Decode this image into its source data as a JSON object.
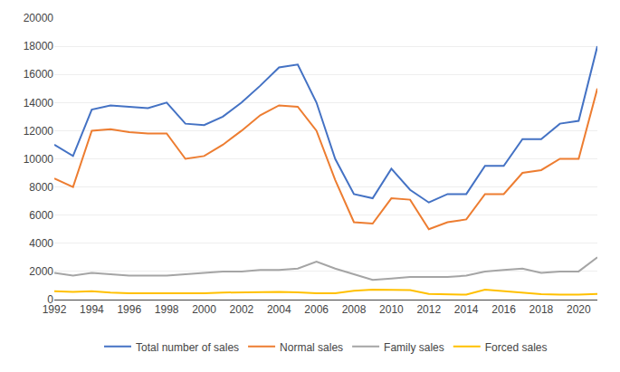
{
  "chart_data": {
    "type": "line",
    "x": [
      1992,
      1993,
      1994,
      1995,
      1996,
      1997,
      1998,
      1999,
      2000,
      2001,
      2002,
      2003,
      2004,
      2005,
      2006,
      2007,
      2008,
      2009,
      2010,
      2011,
      2012,
      2013,
      2014,
      2015,
      2016,
      2017,
      2018,
      2019,
      2020,
      2021
    ],
    "series": [
      {
        "name": "Total number of sales",
        "color": "#4472C4",
        "values": [
          11000,
          10200,
          13500,
          13800,
          13700,
          13600,
          14000,
          12500,
          12400,
          13000,
          14000,
          15200,
          16500,
          16700,
          14000,
          10000,
          7500,
          7200,
          9300,
          7800,
          6900,
          7500,
          7500,
          9500,
          9500,
          11400,
          11400,
          12500,
          12700,
          18000
        ]
      },
      {
        "name": "Normal sales",
        "color": "#ED7D31",
        "values": [
          8600,
          8000,
          12000,
          12100,
          11900,
          11800,
          11800,
          10000,
          10200,
          11000,
          12000,
          13100,
          13800,
          13700,
          12000,
          8500,
          5500,
          5400,
          7200,
          7100,
          5000,
          5500,
          5700,
          7500,
          7500,
          9000,
          9200,
          10000,
          10000,
          15000
        ]
      },
      {
        "name": "Family sales",
        "color": "#A5A5A5",
        "values": [
          1900,
          1700,
          1900,
          1800,
          1700,
          1700,
          1700,
          1800,
          1900,
          2000,
          2000,
          2100,
          2100,
          2200,
          2700,
          2200,
          1800,
          1400,
          1500,
          1600,
          1600,
          1600,
          1700,
          2000,
          2100,
          2200,
          1900,
          2000,
          2000,
          3000
        ]
      },
      {
        "name": "Forced sales",
        "color": "#FFC000",
        "values": [
          600,
          550,
          600,
          500,
          450,
          450,
          430,
          450,
          450,
          500,
          520,
          520,
          550,
          520,
          450,
          450,
          620,
          700,
          700,
          680,
          400,
          380,
          350,
          700,
          600,
          500,
          380,
          350,
          350,
          400
        ]
      }
    ],
    "xlim": [
      1992,
      2021
    ],
    "xticks": [
      1992,
      1994,
      1996,
      1998,
      2000,
      2002,
      2004,
      2006,
      2008,
      2010,
      2012,
      2014,
      2016,
      2018,
      2020
    ],
    "ylim": [
      0,
      20000
    ],
    "yticks": [
      0,
      2000,
      4000,
      6000,
      8000,
      10000,
      12000,
      14000,
      16000,
      18000,
      20000
    ],
    "grid": "y",
    "legend": "bottom"
  }
}
